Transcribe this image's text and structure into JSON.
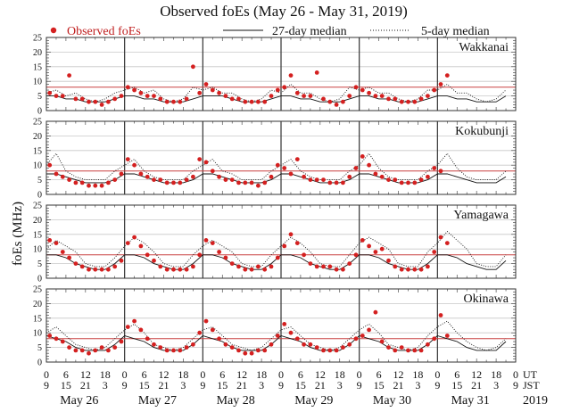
{
  "chart_data": {
    "type": "scatter",
    "title": "Observed foEs (May 26 - May 31, 2019)",
    "ylabel": "foEs (MHz)",
    "ylim": [
      0,
      25
    ],
    "yticks": [
      0,
      5,
      10,
      15,
      20,
      25
    ],
    "reference_line_mhz": 8,
    "legend": {
      "placement": "top",
      "observed": "Observed foEs",
      "median27": "27-day median",
      "median5": "5-day median"
    },
    "colors": {
      "observed": "#d42020",
      "reference": "#c84040",
      "grid": "#c8c8c8",
      "axis": "#222222"
    },
    "x_axis": {
      "ut_label": "UT",
      "jst_label": "JST",
      "ut_ticks": [
        "0",
        "6",
        "12",
        "18"
      ],
      "jst_ticks": [
        "9",
        "15",
        "21",
        "3"
      ],
      "end_ut": "0",
      "end_jst": "9",
      "days": [
        "May 26",
        "May 27",
        "May 28",
        "May 29",
        "May 30",
        "May 31"
      ],
      "year": "2019"
    },
    "observed_step_hours": 2,
    "median_step_hours": 3,
    "stations": [
      {
        "name": "Wakkanai",
        "observed": [
          [
            6,
            5,
            5,
            12,
            4,
            4,
            3,
            3,
            2,
            3,
            4,
            5
          ],
          [
            8,
            7,
            6,
            5,
            5,
            4,
            3,
            3,
            3,
            4,
            15,
            6
          ],
          [
            9,
            7,
            6,
            5,
            4,
            4,
            3,
            3,
            3,
            3,
            5,
            7
          ],
          [
            8,
            12,
            6,
            5,
            5,
            13,
            4,
            3,
            2,
            3,
            5,
            8
          ],
          [
            7,
            6,
            5,
            5,
            4,
            4,
            3,
            3,
            3,
            4,
            5,
            7
          ],
          [
            9,
            12,
            null,
            null,
            null,
            null,
            null,
            null,
            null,
            null,
            null,
            null
          ]
        ],
        "median27": [
          [
            5,
            5,
            4,
            4,
            3,
            3,
            3,
            4
          ],
          [
            5,
            5,
            4,
            4,
            3,
            3,
            3,
            4
          ],
          [
            5,
            5,
            5,
            4,
            3,
            3,
            3,
            4
          ],
          [
            5,
            5,
            4,
            4,
            3,
            3,
            3,
            4
          ],
          [
            5,
            5,
            4,
            4,
            3,
            3,
            3,
            4
          ],
          [
            5,
            5,
            4,
            4,
            3,
            3,
            3,
            5
          ]
        ],
        "median5": [
          [
            6,
            7,
            5,
            6,
            4,
            3,
            4,
            6
          ],
          [
            7,
            8,
            6,
            7,
            4,
            3,
            4,
            8
          ],
          [
            7,
            8,
            6,
            6,
            4,
            3,
            4,
            7
          ],
          [
            6,
            9,
            6,
            6,
            4,
            3,
            4,
            8
          ],
          [
            7,
            8,
            6,
            6,
            4,
            3,
            4,
            7
          ],
          [
            7,
            9,
            6,
            6,
            4,
            3,
            4,
            7
          ]
        ]
      },
      {
        "name": "Kokubunji",
        "observed": [
          [
            10,
            7,
            6,
            5,
            4,
            4,
            3,
            3,
            3,
            4,
            5,
            7
          ],
          [
            12,
            10,
            7,
            6,
            5,
            5,
            4,
            4,
            4,
            5,
            6,
            12
          ],
          [
            11,
            8,
            6,
            5,
            5,
            4,
            4,
            4,
            3,
            4,
            6,
            10
          ],
          [
            9,
            7,
            12,
            6,
            5,
            5,
            5,
            4,
            4,
            4,
            6,
            9
          ],
          [
            13,
            10,
            7,
            6,
            5,
            5,
            4,
            4,
            4,
            5,
            6,
            9
          ],
          [
            8,
            null,
            null,
            null,
            null,
            null,
            null,
            null,
            null,
            null,
            null,
            null
          ]
        ],
        "median27": [
          [
            7,
            7,
            6,
            5,
            4,
            4,
            4,
            5
          ],
          [
            7,
            7,
            6,
            5,
            4,
            4,
            4,
            5
          ],
          [
            7,
            7,
            6,
            5,
            4,
            4,
            4,
            5
          ],
          [
            7,
            7,
            6,
            5,
            4,
            4,
            4,
            5
          ],
          [
            7,
            7,
            6,
            5,
            4,
            4,
            4,
            5
          ],
          [
            7,
            7,
            6,
            5,
            4,
            4,
            4,
            6
          ]
        ],
        "median5": [
          [
            10,
            14,
            8,
            6,
            5,
            5,
            5,
            8
          ],
          [
            10,
            12,
            8,
            6,
            5,
            5,
            5,
            8
          ],
          [
            10,
            12,
            8,
            7,
            5,
            5,
            5,
            8
          ],
          [
            10,
            12,
            8,
            6,
            5,
            5,
            5,
            8
          ],
          [
            10,
            14,
            9,
            6,
            5,
            5,
            5,
            8
          ],
          [
            10,
            14,
            9,
            6,
            5,
            5,
            5,
            8
          ]
        ]
      },
      {
        "name": "Yamagawa",
        "observed": [
          [
            13,
            12,
            9,
            7,
            5,
            4,
            3,
            3,
            3,
            3,
            4,
            6
          ],
          [
            12,
            14,
            11,
            8,
            6,
            4,
            3,
            3,
            3,
            3,
            4,
            8
          ],
          [
            13,
            12,
            9,
            7,
            5,
            4,
            3,
            3,
            4,
            3,
            4,
            7
          ],
          [
            11,
            15,
            12,
            8,
            5,
            4,
            4,
            4,
            3,
            3,
            5,
            8
          ],
          [
            13,
            11,
            9,
            10,
            6,
            4,
            3,
            3,
            3,
            3,
            4,
            9
          ],
          [
            14,
            12,
            null,
            null,
            null,
            null,
            null,
            null,
            null,
            null,
            null,
            null
          ]
        ],
        "median27": [
          [
            8,
            8,
            7,
            5,
            4,
            3,
            3,
            5
          ],
          [
            8,
            8,
            7,
            5,
            4,
            3,
            3,
            5
          ],
          [
            8,
            8,
            7,
            5,
            4,
            3,
            3,
            5
          ],
          [
            8,
            8,
            7,
            5,
            4,
            3,
            3,
            5
          ],
          [
            8,
            8,
            7,
            5,
            4,
            3,
            3,
            5
          ],
          [
            8,
            8,
            7,
            5,
            4,
            3,
            3,
            6
          ]
        ],
        "median5": [
          [
            10,
            13,
            11,
            9,
            5,
            4,
            4,
            7
          ],
          [
            11,
            14,
            12,
            9,
            5,
            4,
            4,
            8
          ],
          [
            11,
            13,
            11,
            9,
            5,
            4,
            4,
            8
          ],
          [
            11,
            14,
            12,
            9,
            5,
            4,
            4,
            8
          ],
          [
            12,
            14,
            12,
            10,
            5,
            4,
            4,
            9
          ],
          [
            12,
            16,
            13,
            10,
            5,
            4,
            4,
            8
          ]
        ]
      },
      {
        "name": "Okinawa",
        "observed": [
          [
            9,
            8,
            7,
            5,
            4,
            4,
            3,
            4,
            5,
            4,
            5,
            7
          ],
          [
            12,
            14,
            11,
            8,
            6,
            5,
            4,
            4,
            4,
            5,
            6,
            10
          ],
          [
            14,
            11,
            8,
            6,
            5,
            4,
            3,
            3,
            4,
            4,
            6,
            9
          ],
          [
            13,
            10,
            8,
            6,
            6,
            5,
            4,
            4,
            4,
            5,
            6,
            8
          ],
          [
            9,
            11,
            17,
            7,
            5,
            4,
            5,
            4,
            4,
            4,
            6,
            8
          ],
          [
            16,
            9,
            null,
            null,
            null,
            null,
            null,
            null,
            null,
            null,
            null,
            null
          ]
        ],
        "median27": [
          [
            9,
            8,
            7,
            5,
            4,
            4,
            4,
            6
          ],
          [
            9,
            8,
            7,
            5,
            4,
            4,
            4,
            6
          ],
          [
            9,
            8,
            7,
            5,
            4,
            4,
            4,
            6
          ],
          [
            9,
            8,
            7,
            5,
            4,
            4,
            4,
            6
          ],
          [
            9,
            8,
            7,
            5,
            4,
            4,
            4,
            6
          ],
          [
            9,
            8,
            7,
            5,
            4,
            4,
            4,
            7
          ]
        ],
        "median5": [
          [
            10,
            12,
            9,
            6,
            5,
            4,
            5,
            8
          ],
          [
            11,
            13,
            10,
            6,
            5,
            4,
            5,
            8
          ],
          [
            11,
            12,
            9,
            6,
            5,
            4,
            5,
            8
          ],
          [
            11,
            12,
            9,
            6,
            5,
            4,
            5,
            8
          ],
          [
            11,
            13,
            10,
            6,
            5,
            4,
            5,
            9
          ],
          [
            12,
            14,
            10,
            7,
            5,
            4,
            5,
            8
          ]
        ]
      }
    ]
  }
}
